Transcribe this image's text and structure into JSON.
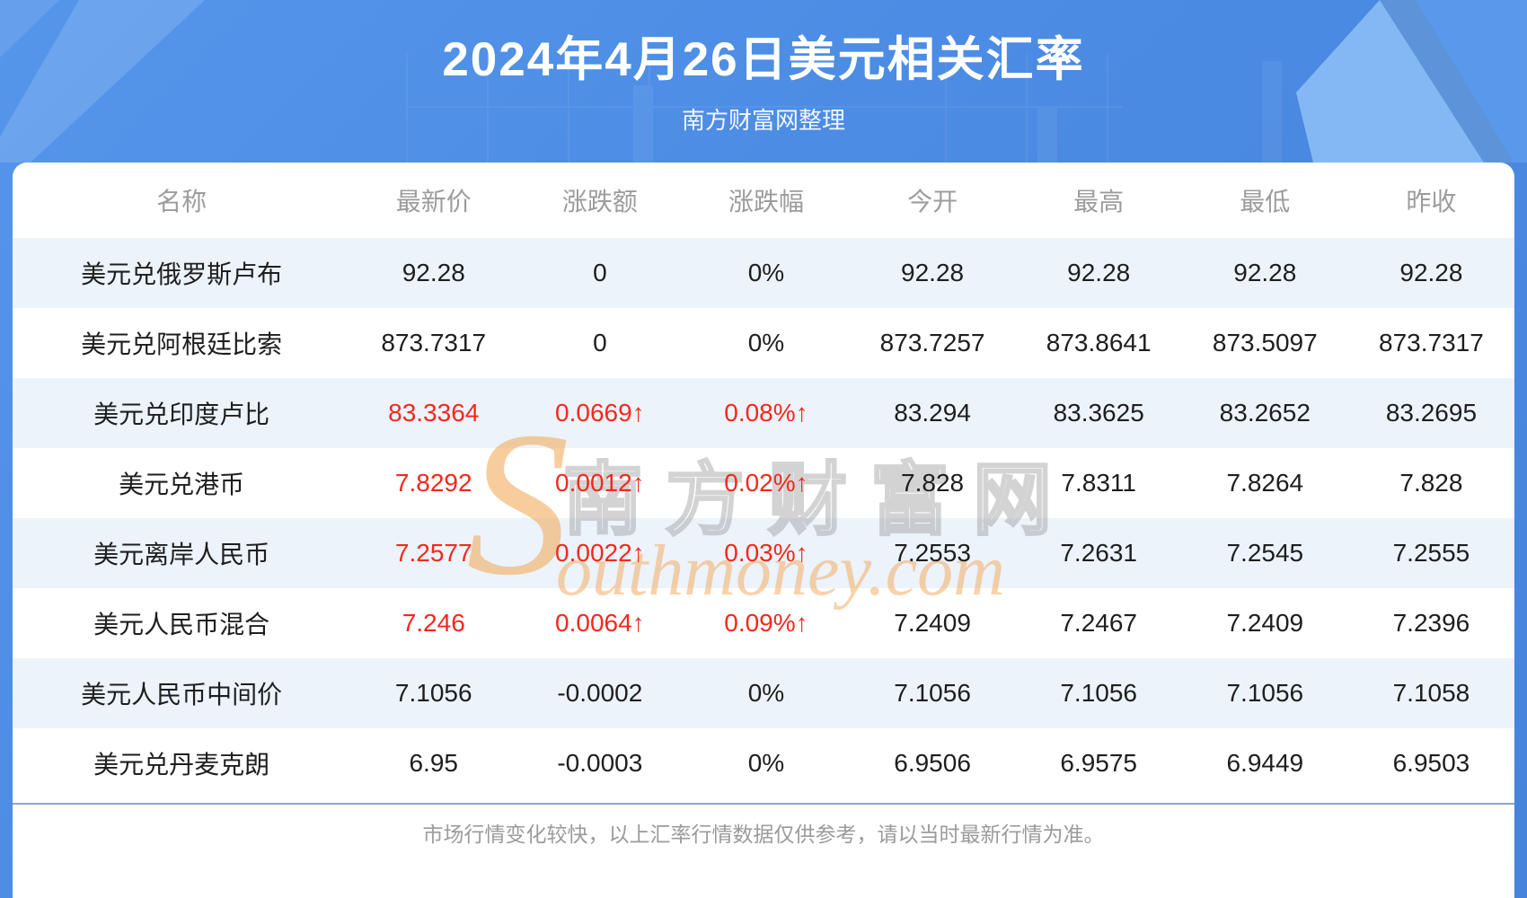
{
  "header": {
    "title": "2024年4月26日美元相关汇率",
    "subtitle": "南方财富网整理"
  },
  "chart_data": {
    "type": "table",
    "title": "2024年4月26日美元相关汇率",
    "columns": [
      "名称",
      "最新价",
      "涨跌额",
      "涨跌幅",
      "今开",
      "最高",
      "最低",
      "昨收"
    ],
    "rows": [
      [
        "美元兑俄罗斯卢布",
        "92.28",
        "0",
        "0%",
        "92.28",
        "92.28",
        "92.28",
        "92.28"
      ],
      [
        "美元兑阿根廷比索",
        "873.7317",
        "0",
        "0%",
        "873.7257",
        "873.8641",
        "873.5097",
        "873.7317"
      ],
      [
        "美元兑印度卢比",
        "83.3364",
        "0.0669↑",
        "0.08%↑",
        "83.294",
        "83.3625",
        "83.2652",
        "83.2695"
      ],
      [
        "美元兑港币",
        "7.8292",
        "0.0012↑",
        "0.02%↑",
        "7.828",
        "7.8311",
        "7.8264",
        "7.828"
      ],
      [
        "美元离岸人民币",
        "7.2577",
        "0.0022↑",
        "0.03%↑",
        "7.2553",
        "7.2631",
        "7.2545",
        "7.2555"
      ],
      [
        "美元人民币混合",
        "7.246",
        "0.0064↑",
        "0.09%↑",
        "7.2409",
        "7.2467",
        "7.2409",
        "7.2396"
      ],
      [
        "美元人民币中间价",
        "7.1056",
        "-0.0002",
        "0%",
        "7.1056",
        "7.1056",
        "7.1056",
        "7.1058"
      ],
      [
        "美元兑丹麦克朗",
        "6.95",
        "-0.0003",
        "0%",
        "6.9506",
        "6.9575",
        "6.9449",
        "6.9503"
      ]
    ],
    "layout_hints": {
      "striped_rows": "odd rows light blue #ecf3fb",
      "up_color": "#f5281c",
      "up_styled_columns": [
        "最新价",
        "涨跌额",
        "涨跌幅"
      ]
    }
  },
  "watermark": {
    "initial": "S",
    "brand_cn": "南方财富网",
    "brand_en": "outhmoney.com"
  },
  "footer": {
    "note": "市场行情变化较快，以上汇率行情数据仅供参考，请以当时最新行情为准。"
  },
  "colors": {
    "background_blue": "#4c8ce4",
    "row_alt_blue": "#ecf3fb",
    "up_red": "#f5281c",
    "header_gray": "#9c9c9c",
    "cell_text": "#1e1e1e",
    "divider": "#90a8c3",
    "watermark_orange": "#f3a44e"
  }
}
